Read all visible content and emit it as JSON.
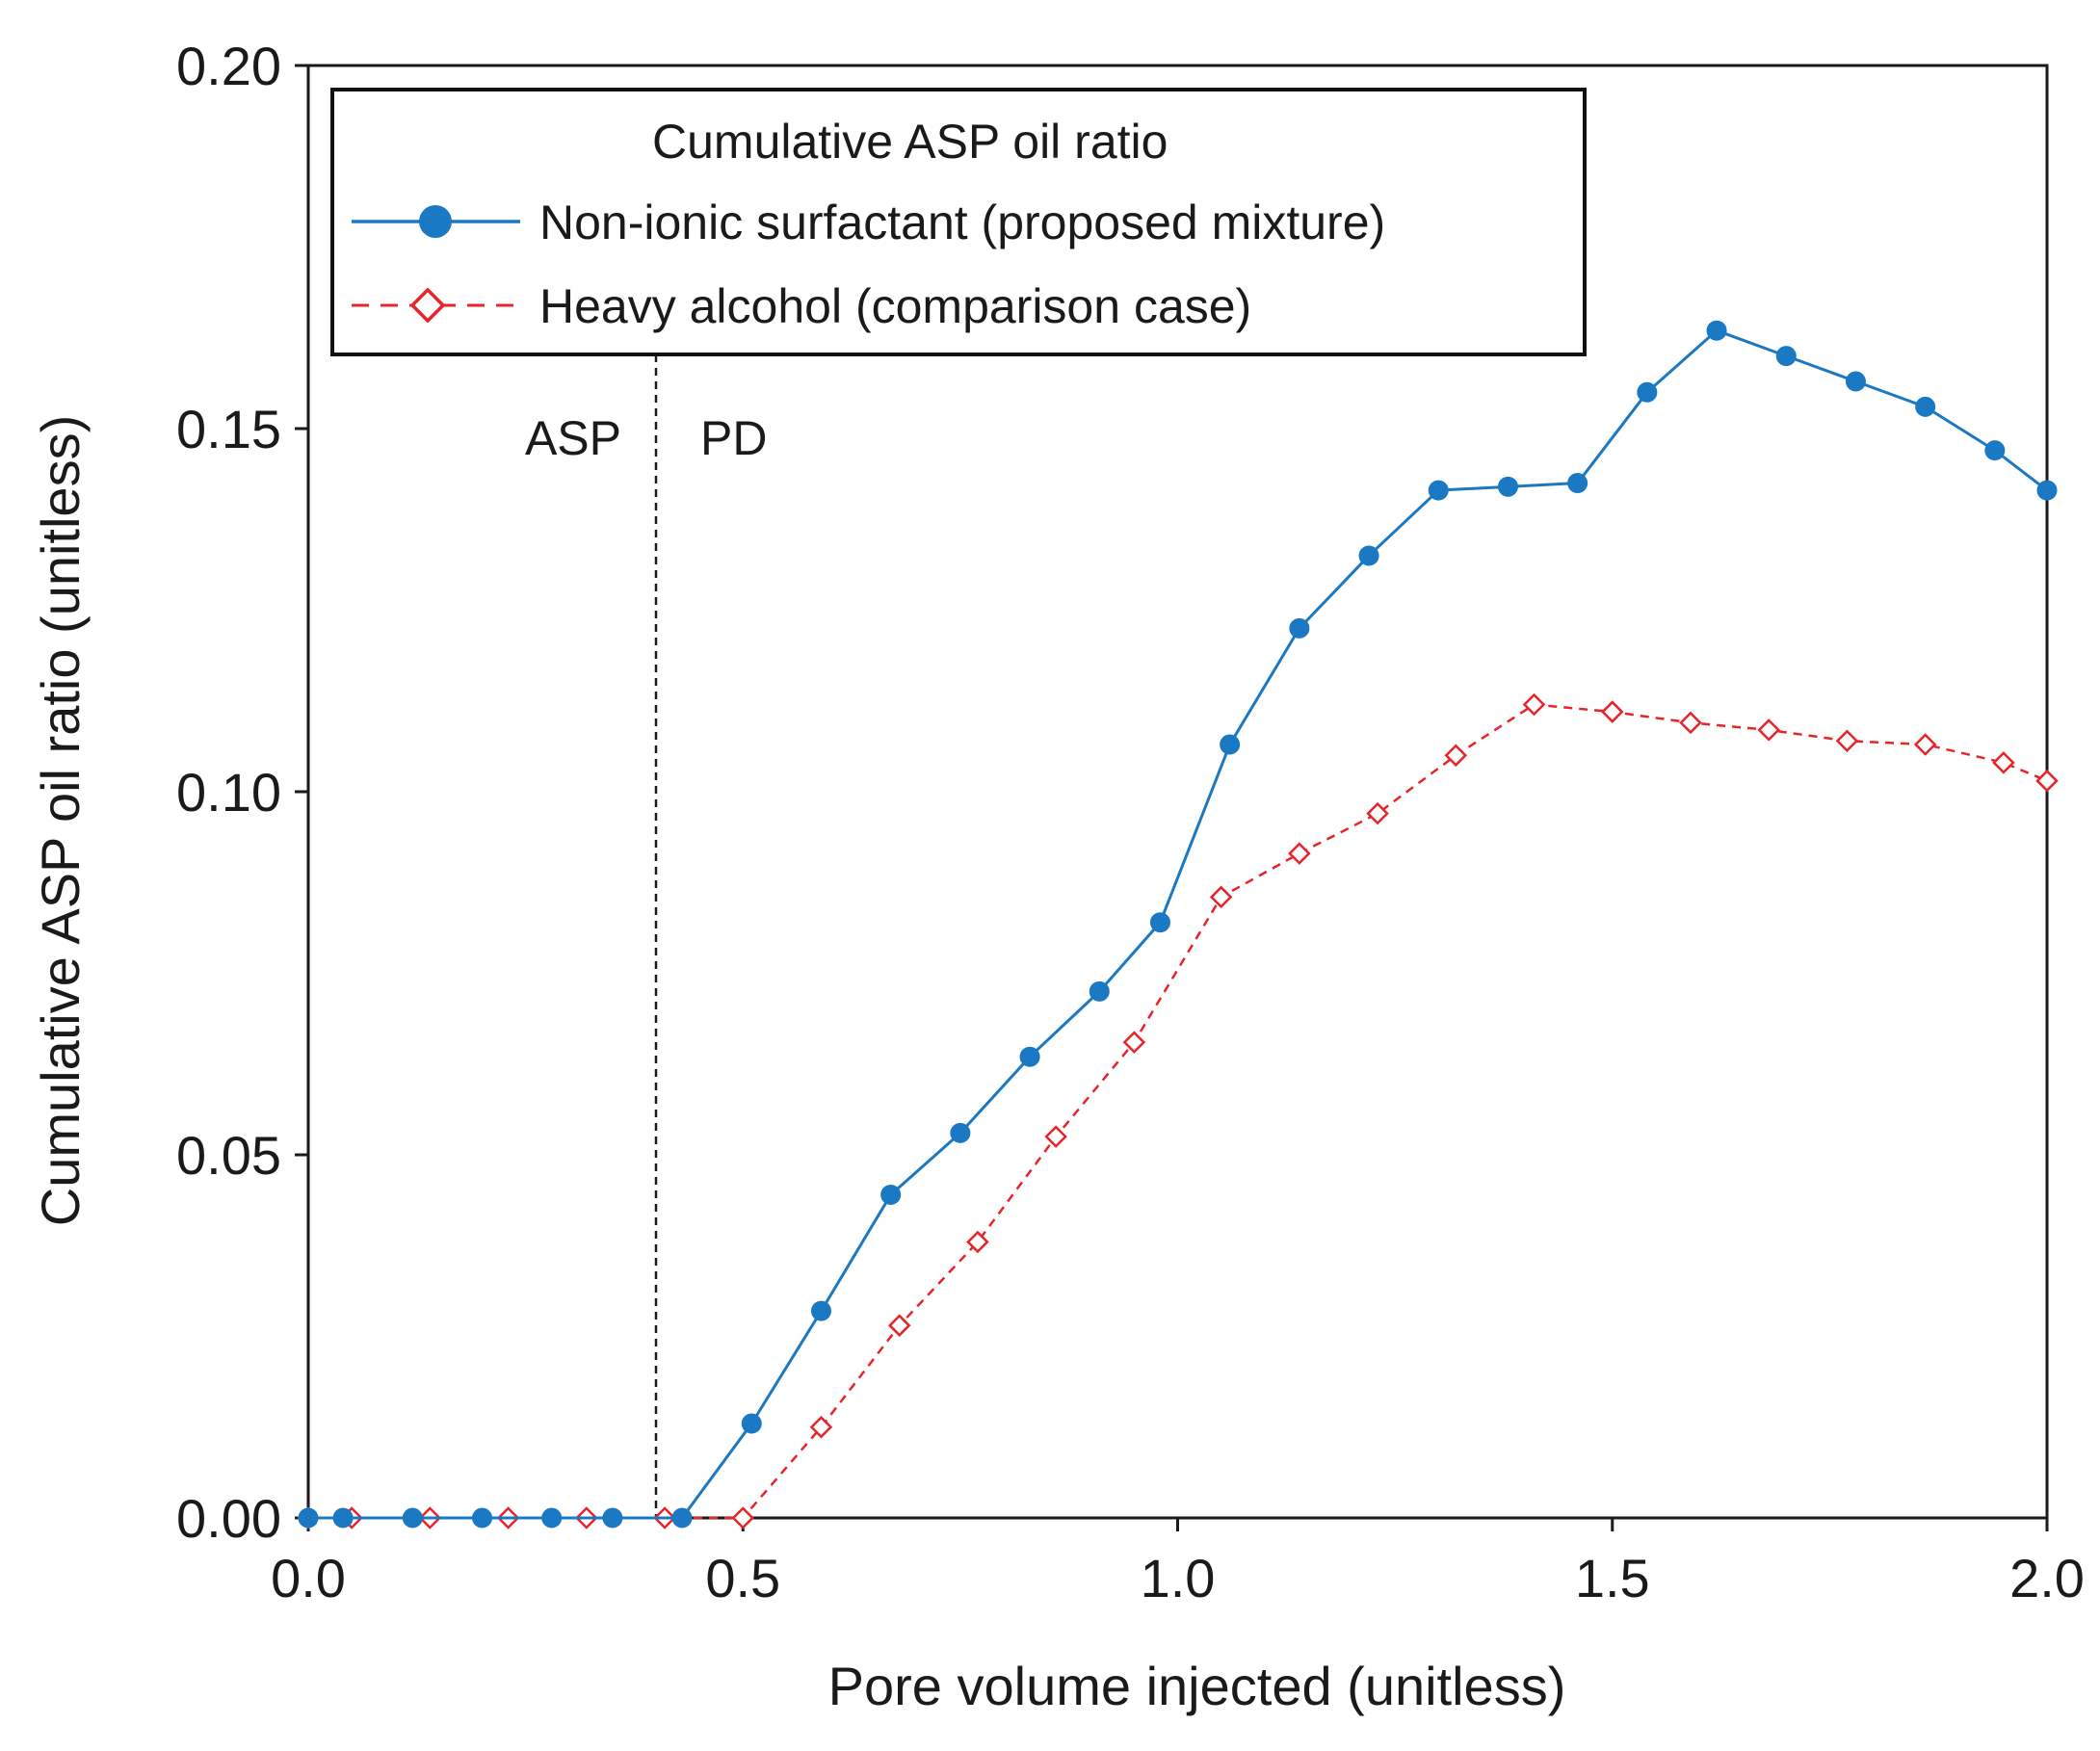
{
  "chart_data": {
    "type": "line",
    "title": "",
    "xlabel": "Pore volume injected (unitless)",
    "ylabel": "Cumulative ASP oil ratio (unitless)",
    "xlim": [
      0.0,
      2.0
    ],
    "ylim": [
      0.0,
      0.2
    ],
    "x_ticks": [
      "0.0",
      "0.5",
      "1.0",
      "1.5",
      "2.0"
    ],
    "y_ticks": [
      "0.00",
      "0.05",
      "0.10",
      "0.15",
      "0.20"
    ],
    "grid": false,
    "legend": {
      "title": "Cumulative ASP oil ratio",
      "placement": "top-left"
    },
    "annotations": {
      "divider_x": 0.4,
      "left_region_label": "ASP",
      "right_region_label": "PD"
    },
    "series": [
      {
        "name": "Non-ionic surfactant (proposed mixture)",
        "color": "#1b78c2",
        "line_style": "solid",
        "marker": "circle",
        "x": [
          0.0,
          0.04,
          0.12,
          0.2,
          0.28,
          0.35,
          0.43,
          0.51,
          0.59,
          0.67,
          0.75,
          0.83,
          0.91,
          0.98,
          1.06,
          1.14,
          1.22,
          1.3,
          1.38,
          1.46,
          1.54,
          1.62,
          1.7,
          1.78,
          1.86,
          1.94,
          2.0
        ],
        "values": [
          0.0,
          0.0,
          0.0,
          0.0,
          0.0,
          0.0,
          0.0,
          0.013,
          0.0285,
          0.0445,
          0.053,
          0.0635,
          0.0725,
          0.082,
          0.1065,
          0.1225,
          0.1325,
          0.1415,
          0.142,
          0.1425,
          0.155,
          0.1635,
          0.16,
          0.1565,
          0.153,
          0.147,
          0.1415
        ]
      },
      {
        "name": "Heavy alcohol (comparison case)",
        "color": "#e8232a",
        "line_style": "dashed",
        "marker": "diamond-open",
        "x": [
          0.0,
          0.05,
          0.14,
          0.23,
          0.32,
          0.41,
          0.5,
          0.59,
          0.68,
          0.77,
          0.86,
          0.95,
          1.05,
          1.14,
          1.23,
          1.32,
          1.41,
          1.5,
          1.59,
          1.68,
          1.77,
          1.86,
          1.95,
          2.0
        ],
        "values": [
          0.0,
          0.0,
          0.0,
          0.0,
          0.0,
          0.0,
          0.0,
          0.0125,
          0.0265,
          0.038,
          0.0525,
          0.0655,
          0.0855,
          0.0915,
          0.097,
          0.105,
          0.112,
          0.111,
          0.1095,
          0.1085,
          0.107,
          0.1065,
          0.104,
          0.1015
        ]
      }
    ]
  }
}
